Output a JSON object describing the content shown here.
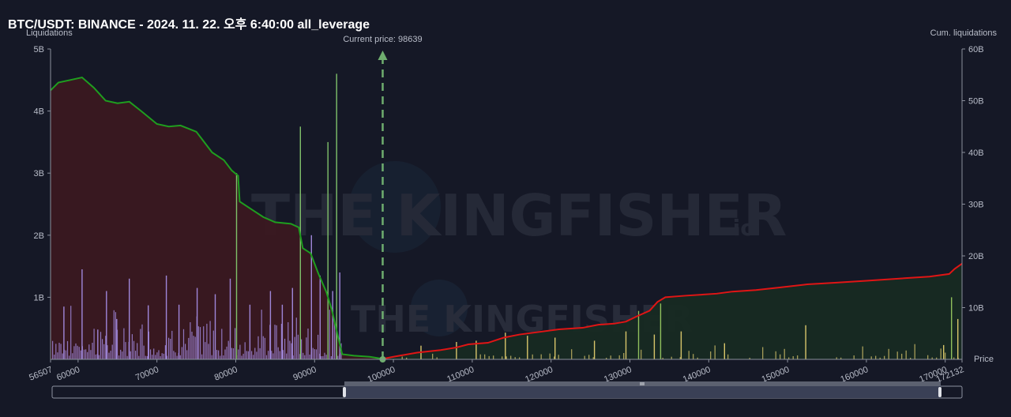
{
  "header": {
    "title": "BTC/USDT: BINANCE - 2024. 11. 22. 오후 6:40:00 all_leverage"
  },
  "watermark": {
    "brand": "THE KINGFISHER",
    "suffix": ".io"
  },
  "colors": {
    "background": "#151826",
    "long_cum_line": "#1f9e1f",
    "long_area": "#3a1820",
    "short_cum_line": "#e01515",
    "short_area": "#172a22",
    "long_bars": "#9f86d9",
    "short_bars": "#d8c56a",
    "current_price_line": "#6fae6f"
  },
  "chart_data": {
    "type": "bar",
    "title": "BTC/USDT: BINANCE - 2024. 11. 22. 오후 6:40:00 all_leverage",
    "xlabel": "Price",
    "ylabel_left": "Liquidations",
    "ylabel_right": "Cum. liquidations",
    "xlim": [
      56507,
      172132
    ],
    "ylim_left": [
      0,
      5000000000
    ],
    "ylim_right": [
      0,
      60000000000
    ],
    "x_ticks": [
      "56507",
      "60000",
      "70000",
      "80000",
      "90000",
      "100000",
      "110000",
      "120000",
      "130000",
      "140000",
      "150000",
      "160000",
      "170000",
      "172132"
    ],
    "x_tick_values": [
      56507,
      60000,
      70000,
      80000,
      90000,
      100000,
      110000,
      120000,
      130000,
      140000,
      150000,
      160000,
      170000,
      172132
    ],
    "y_left_ticks": [
      "1B",
      "2B",
      "3B",
      "4B",
      "5B"
    ],
    "y_left_tick_values": [
      1000000000,
      2000000000,
      3000000000,
      4000000000,
      5000000000
    ],
    "y_right_ticks": [
      "10B",
      "20B",
      "30B",
      "40B",
      "50B",
      "60B"
    ],
    "y_right_tick_values": [
      10000000000,
      20000000000,
      30000000000,
      40000000000,
      50000000000,
      60000000000
    ],
    "current_price": 98639,
    "current_price_label": "Current price: 98639",
    "series": [
      {
        "name": "Long cumulative liquidations",
        "x": [
          56507,
          57500,
          59000,
          60500,
          62000,
          63500,
          65000,
          66500,
          68000,
          70000,
          71500,
          73000,
          75000,
          77000,
          78500,
          79500,
          80300,
          80500,
          82000,
          83500,
          85000,
          87000,
          88000,
          88500,
          89500,
          90500,
          91500,
          92200,
          92800,
          93500,
          95000,
          97000,
          98639
        ],
        "y": [
          52000000000,
          53500000000,
          54000000000,
          54500000000,
          52500000000,
          50000000000,
          49500000000,
          49800000000,
          48000000000,
          45500000000,
          45000000000,
          45200000000,
          44000000000,
          40000000000,
          38500000000,
          36500000000,
          35500000000,
          30500000000,
          29000000000,
          27500000000,
          26500000000,
          26200000000,
          25500000000,
          21500000000,
          20500000000,
          16500000000,
          13000000000,
          9500000000,
          5500000000,
          1000000000,
          700000000,
          500000000,
          100000000
        ]
      },
      {
        "name": "Short cumulative liquidations",
        "x": [
          98639,
          100000,
          103000,
          106000,
          108000,
          109500,
          112000,
          114000,
          116000,
          118000,
          121000,
          124000,
          126000,
          128000,
          129500,
          131000,
          132500,
          133500,
          134500,
          137000,
          141000,
          143000,
          146000,
          149000,
          152500,
          156000,
          160000,
          164000,
          168000,
          170500,
          171200,
          172132
        ],
        "y": [
          100000000,
          500000000,
          1300000000,
          1800000000,
          2300000000,
          2900000000,
          3200000000,
          4200000000,
          4800000000,
          5200000000,
          5800000000,
          6100000000,
          6700000000,
          6900000000,
          7300000000,
          8400000000,
          9400000000,
          11100000000,
          12000000000,
          12300000000,
          12700000000,
          13100000000,
          13400000000,
          13900000000,
          14500000000,
          14800000000,
          15200000000,
          15600000000,
          16000000000,
          16500000000,
          17500000000,
          18500000000
        ]
      },
      {
        "name": "Long liquidation bars",
        "x": [
          58200,
          60500,
          62500,
          63600,
          64900,
          66500,
          68900,
          71200,
          72800,
          75100,
          77400,
          79300,
          80100,
          81800,
          84400,
          85900,
          87200,
          88200,
          89600,
          90700,
          91700,
          92300,
          92800,
          93200
        ],
        "y": [
          850000000,
          1450000000,
          480000000,
          1100000000,
          650000000,
          1300000000,
          870000000,
          1350000000,
          880000000,
          1150000000,
          1050000000,
          1300000000,
          3000000000,
          880000000,
          1100000000,
          880000000,
          1150000000,
          3750000000,
          2000000000,
          1350000000,
          3500000000,
          1100000000,
          4600000000,
          1400000000
        ]
      },
      {
        "name": "Short liquidation bars",
        "x": [
          103500,
          108000,
          110500,
          114200,
          117000,
          120500,
          125500,
          129500,
          131100,
          133100,
          133900,
          136500,
          142000,
          152300,
          169800,
          170800,
          171600
        ],
        "y": [
          220000000,
          280000000,
          300000000,
          430000000,
          380000000,
          350000000,
          300000000,
          450000000,
          780000000,
          400000000,
          900000000,
          450000000,
          260000000,
          550000000,
          230000000,
          1000000000,
          650000000
        ]
      }
    ],
    "grid": false,
    "legend": "none"
  }
}
